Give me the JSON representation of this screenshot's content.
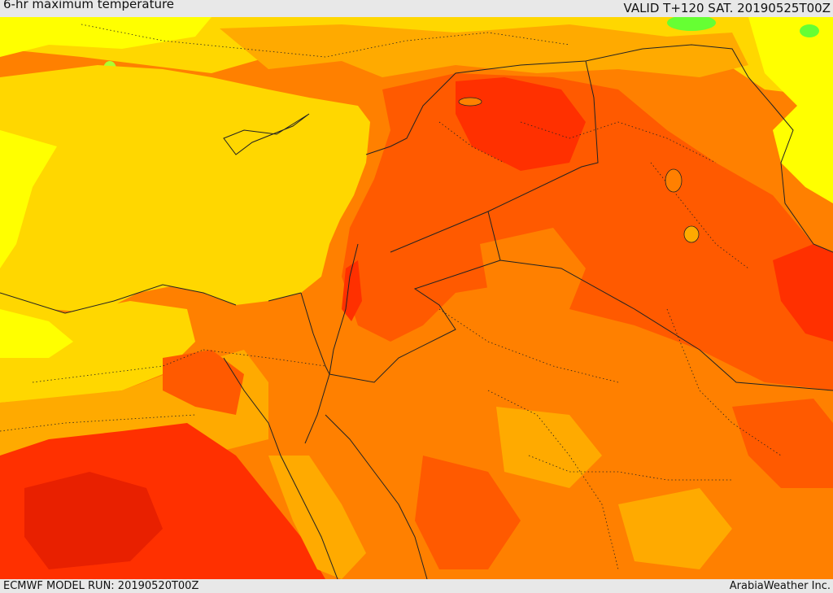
{
  "header": {
    "title": "6-hr maximum temperature",
    "valid_time": "VALID T+120 SAT. 20190525T00Z"
  },
  "footer": {
    "model_run": "ECMWF MODEL RUN: 20190520T00Z",
    "credit": "ArabiaWeather Inc."
  },
  "map": {
    "colors": {
      "yellow_bright": "#ffff00",
      "yellow": "#ffd700",
      "orange_light": "#ffaa00",
      "orange": "#ff8000",
      "orange_red": "#ff5a00",
      "red": "#ff3000",
      "dark_red": "#e82000",
      "green": "#66ff33",
      "border": "#222222"
    }
  }
}
